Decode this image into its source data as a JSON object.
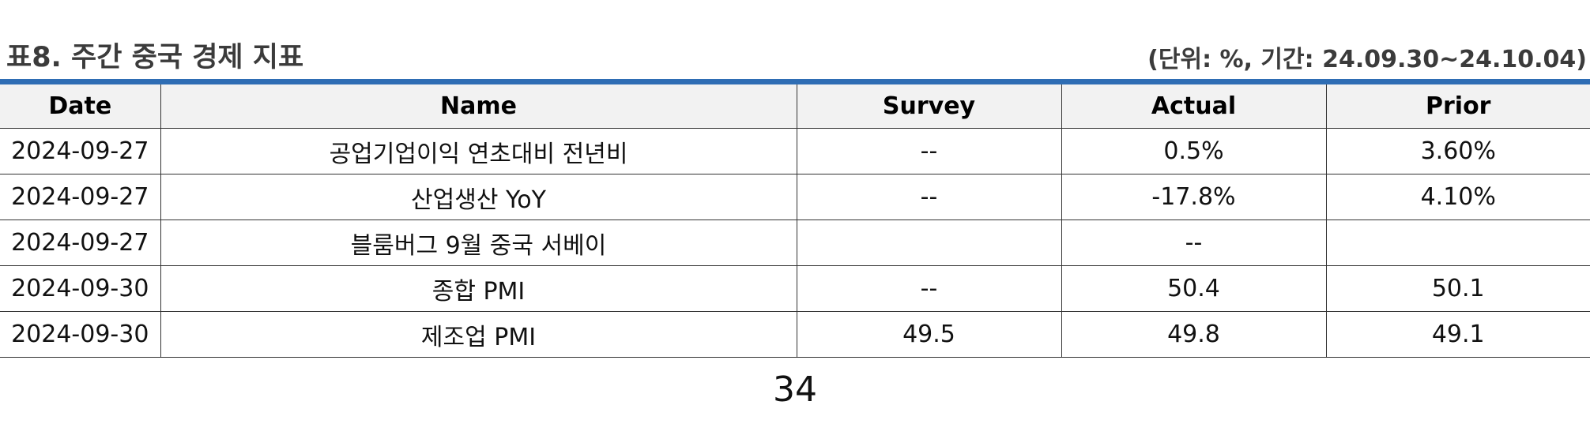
{
  "header": {
    "title": "표8. 주간 중국 경제 지표",
    "unit_note": "(단위: %, 기간: 24.09.30~24.10.04)",
    "accent_color": "#2e6db4"
  },
  "table": {
    "columns": [
      "Date",
      "Name",
      "Survey",
      "Actual",
      "Prior"
    ],
    "rows": [
      {
        "date": "2024-09-27",
        "name": "공업기업이익 연초대비 전년비",
        "survey": "--",
        "actual": "0.5%",
        "prior": "3.60%"
      },
      {
        "date": "2024-09-27",
        "name": "산업생산 YoY",
        "survey": "--",
        "actual": "-17.8%",
        "prior": "4.10%"
      },
      {
        "date": "2024-09-27",
        "name": "블룸버그 9월 중국 서베이",
        "survey": "",
        "actual": "--",
        "prior": ""
      },
      {
        "date": "2024-09-30",
        "name": "종합 PMI",
        "survey": "--",
        "actual": "50.4",
        "prior": "50.1"
      },
      {
        "date": "2024-09-30",
        "name": "제조업 PMI",
        "survey": "49.5",
        "actual": "49.8",
        "prior": "49.1"
      }
    ]
  },
  "footer": {
    "page_number": "34"
  }
}
